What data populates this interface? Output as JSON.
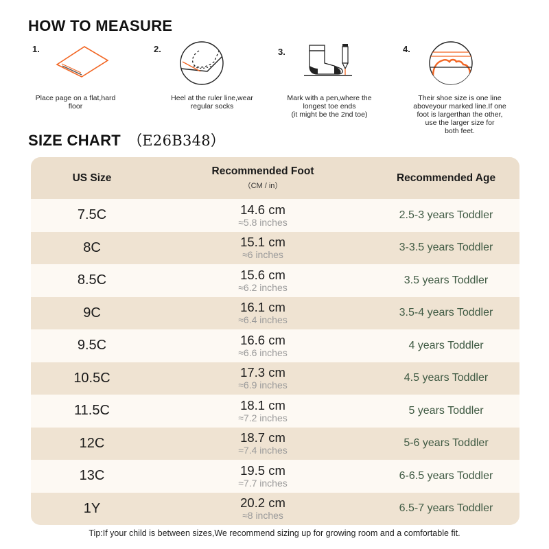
{
  "measure": {
    "title": "HOW TO MEASURE",
    "steps": [
      {
        "num": "1.",
        "caption": [
          "Place page on a flat,hard",
          "floor"
        ],
        "icon": "paper-icon"
      },
      {
        "num": "2.",
        "caption": [
          "Heel at the ruler line,wear",
          "regular socks"
        ],
        "icon": "heel-ruler-icon"
      },
      {
        "num": "3.",
        "caption": [
          "Mark with a pen,where the",
          "longest toe ends",
          "(it might be the 2nd toe)"
        ],
        "icon": "sock-pen-icon"
      },
      {
        "num": "4.",
        "caption": [
          "Their shoe size is one line",
          "aboveyour marked line.If one",
          "foot is largerthan the other,",
          "use the larger size for",
          "both feet."
        ],
        "icon": "toe-line-icon"
      }
    ]
  },
  "size_chart": {
    "title": "SIZE CHART",
    "code": "（E26B348）",
    "headers": {
      "us_size": "US Size",
      "foot": "Recommended Foot",
      "foot_sub": "（CM / in）",
      "age": "Recommended Age"
    },
    "rows": [
      {
        "size": "7.5C",
        "cm": "14.6 cm",
        "inches": "≈5.8 inches",
        "age": "2.5-3 years Toddler"
      },
      {
        "size": "8C",
        "cm": "15.1 cm",
        "inches": "≈6 inches",
        "age": "3-3.5 years Toddler"
      },
      {
        "size": "8.5C",
        "cm": "15.6 cm",
        "inches": "≈6.2 inches",
        "age": "3.5 years Toddler"
      },
      {
        "size": "9C",
        "cm": "16.1 cm",
        "inches": "≈6.4 inches",
        "age": "3.5-4 years Toddler"
      },
      {
        "size": "9.5C",
        "cm": "16.6 cm",
        "inches": "≈6.6 inches",
        "age": "4 years Toddler"
      },
      {
        "size": "10.5C",
        "cm": "17.3 cm",
        "inches": "≈6.9 inches",
        "age": "4.5 years Toddler"
      },
      {
        "size": "11.5C",
        "cm": "18.1 cm",
        "inches": "≈7.2 inches",
        "age": "5 years Toddler"
      },
      {
        "size": "12C",
        "cm": "18.7 cm",
        "inches": "≈7.4 inches",
        "age": "5-6 years Toddler"
      },
      {
        "size": "13C",
        "cm": "19.5 cm",
        "inches": "≈7.7 inches",
        "age": "6-6.5 years Toddler"
      },
      {
        "size": "1Y",
        "cm": "20.2 cm",
        "inches": "≈8 inches",
        "age": "6.5-7 years Toddler"
      }
    ]
  },
  "tip": "Tip:If your child is between sizes,We recommend sizing up for growing room and a comfortable fit.",
  "colors": {
    "accent_orange": "#f26522",
    "header_bg": "#ecdfcd",
    "row_light": "#fdf9f3",
    "row_dark": "#efe3d2",
    "age_text": "#3f5a43"
  }
}
